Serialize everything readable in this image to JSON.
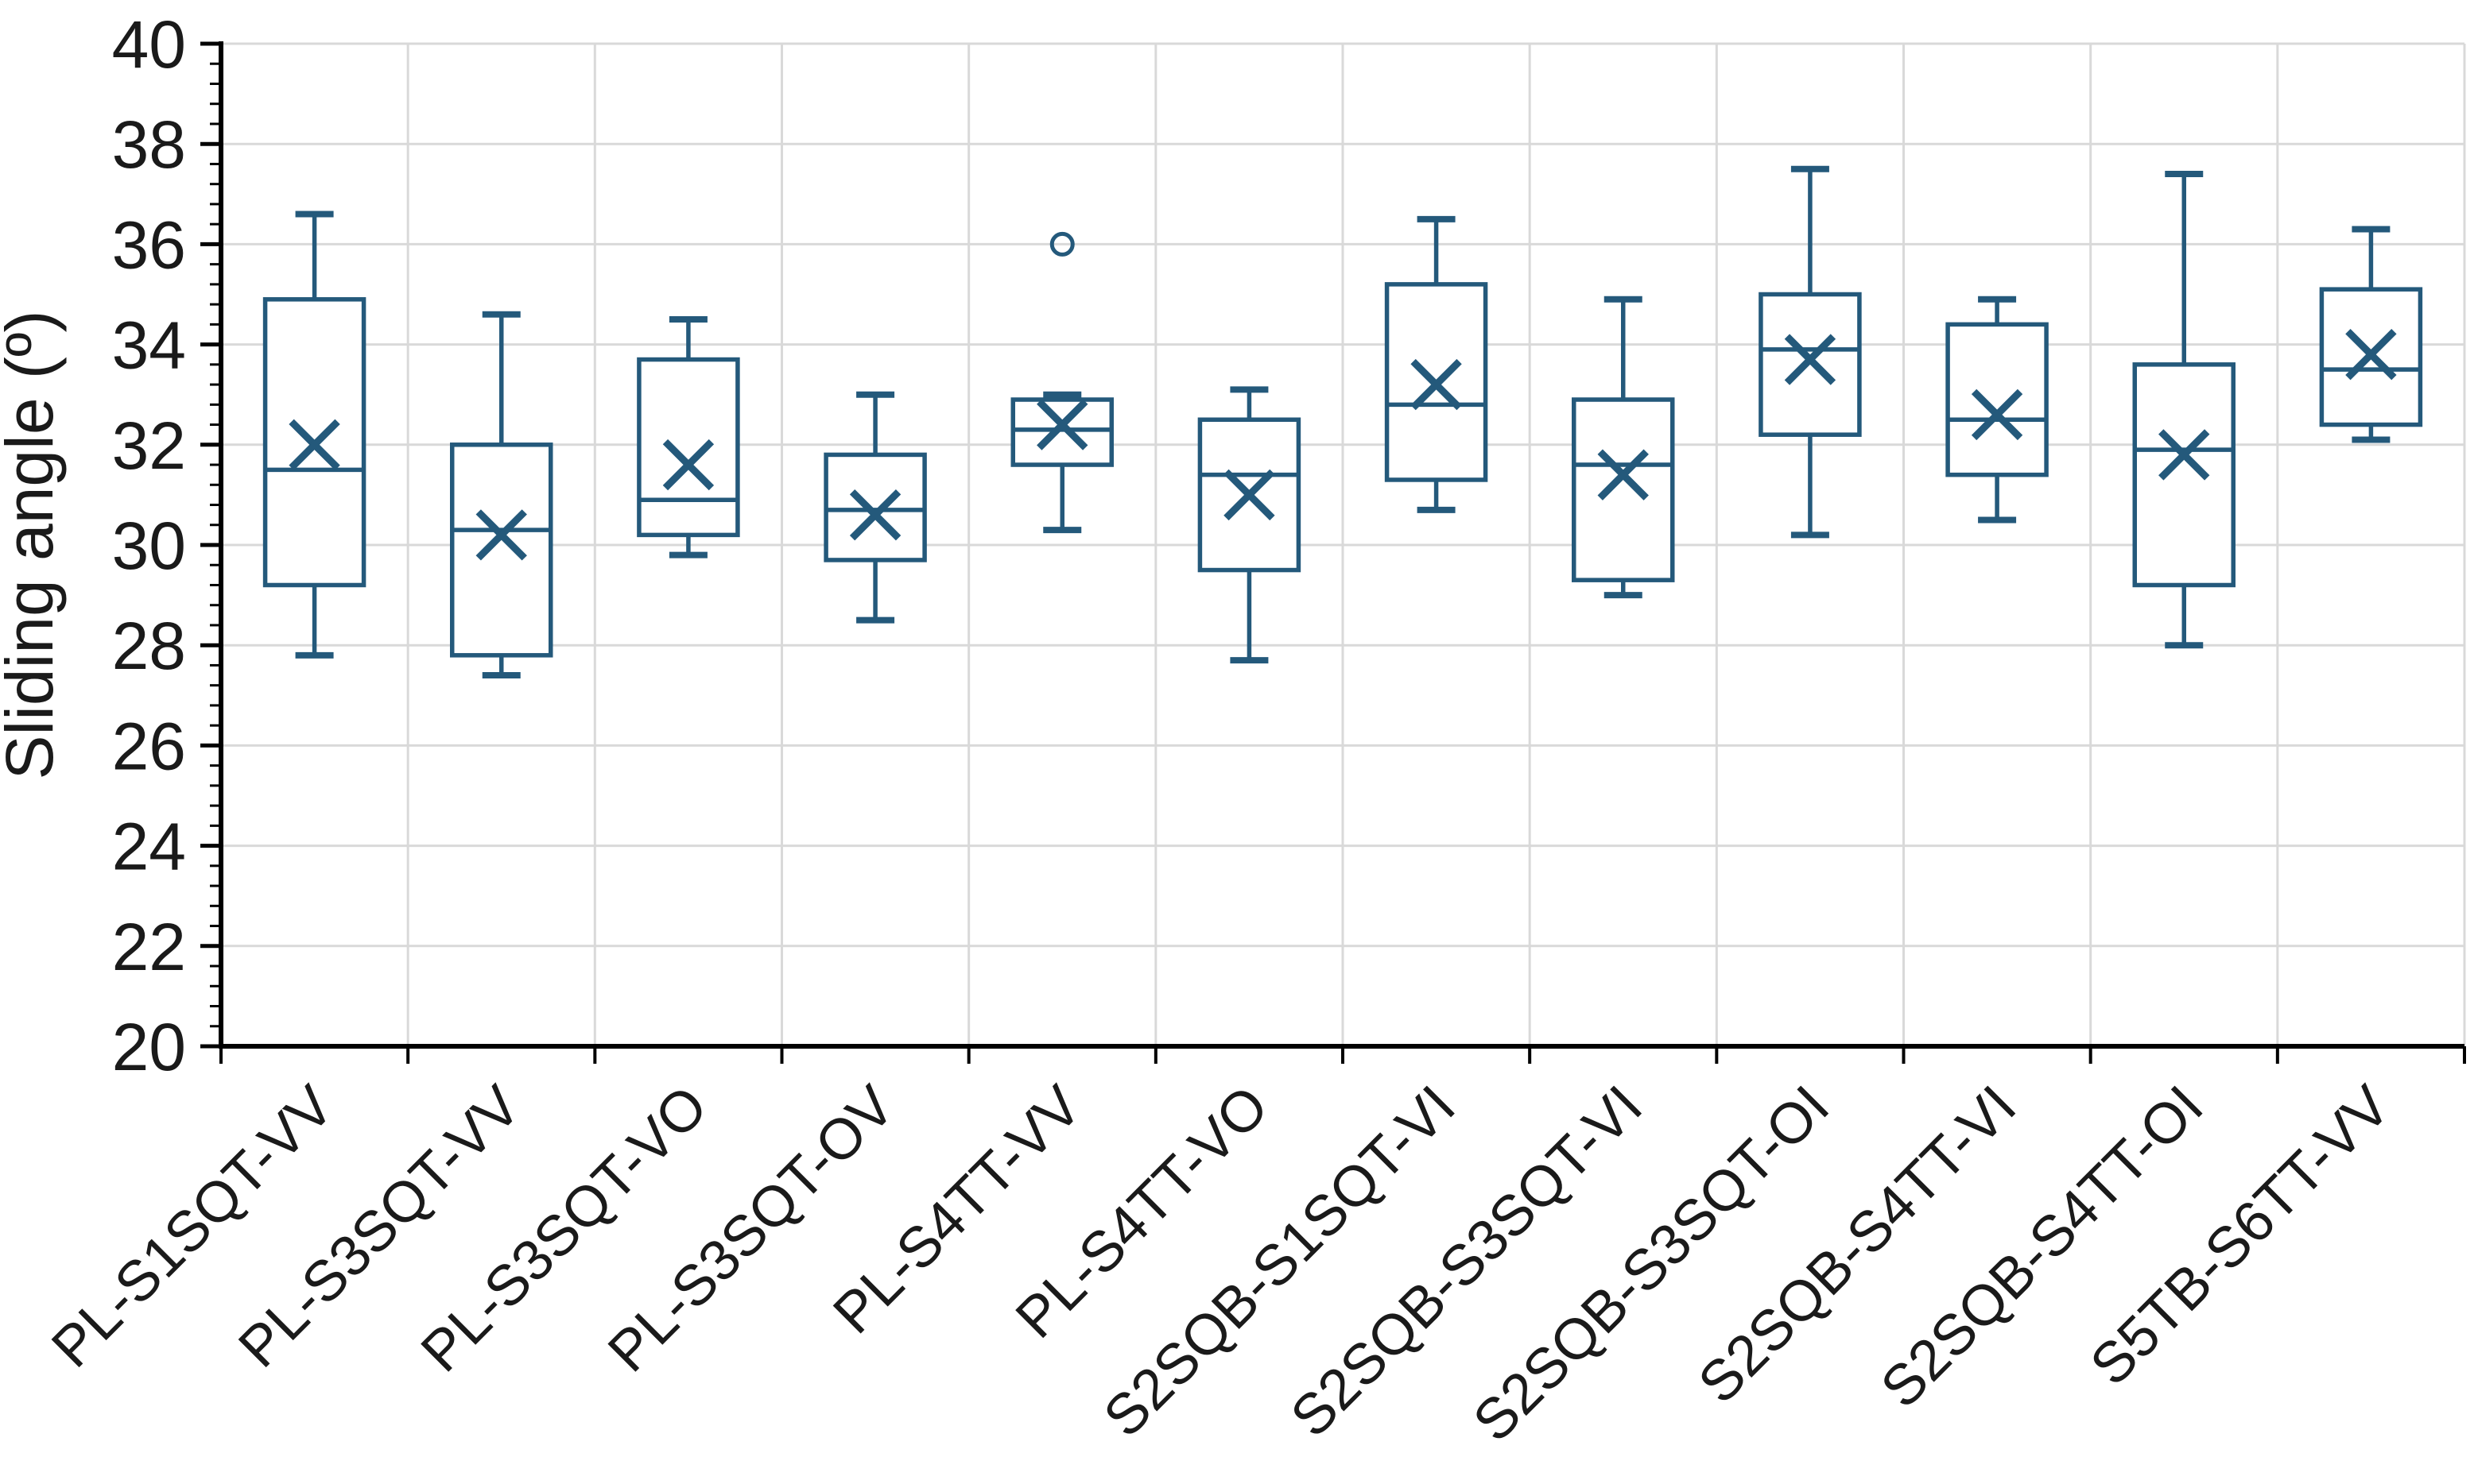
{
  "chart_data": {
    "type": "boxplot",
    "title": "",
    "xlabel": "",
    "ylabel": "Sliding angle (º)",
    "ylim": [
      20,
      40
    ],
    "yticks": [
      20,
      22,
      24,
      26,
      28,
      30,
      32,
      34,
      36,
      38,
      40
    ],
    "y_minor_tick_step": 0.4,
    "grid": true,
    "legend": "none",
    "x_label_rotation_deg": 45,
    "categories": [
      "PL-S1SQT-VV",
      "PL-S3SQT-VV",
      "PL-S3SQT-VO",
      "PL-S3SQT-OV",
      "PL-S4TT-VV",
      "PL-S4TT-VO",
      "S2SQB-S1SQT-VI",
      "S2SQB-S3SQT-VI",
      "S2SQB-S3SQT-OI",
      "S2SQB-S4TT-VI",
      "S2SQB-S4TT-OI",
      "S5TB-S6TT-VV"
    ],
    "series": [
      {
        "name": "PL-S1SQT-VV",
        "whisker_low": 27.8,
        "q1": 29.2,
        "median": 31.5,
        "q3": 34.9,
        "whisker_high": 36.6,
        "mean": 32.0,
        "outliers": []
      },
      {
        "name": "PL-S3SQT-VV",
        "whisker_low": 27.4,
        "q1": 27.8,
        "median": 30.3,
        "q3": 32.0,
        "whisker_high": 34.6,
        "mean": 30.2,
        "outliers": []
      },
      {
        "name": "PL-S3SQT-VO",
        "whisker_low": 29.8,
        "q1": 30.2,
        "median": 30.9,
        "q3": 33.7,
        "whisker_high": 34.5,
        "mean": 31.6,
        "outliers": []
      },
      {
        "name": "PL-S3SQT-OV",
        "whisker_low": 28.5,
        "q1": 29.7,
        "median": 30.7,
        "q3": 31.8,
        "whisker_high": 33.0,
        "mean": 30.6,
        "outliers": []
      },
      {
        "name": "PL-S4TT-VV",
        "whisker_low": 30.3,
        "q1": 31.6,
        "median": 32.3,
        "q3": 32.9,
        "whisker_high": 33.0,
        "mean": 32.4,
        "outliers": [
          36.0
        ]
      },
      {
        "name": "PL-S4TT-VO",
        "whisker_low": 27.7,
        "q1": 29.5,
        "median": 31.4,
        "q3": 32.5,
        "whisker_high": 33.1,
        "mean": 31.0,
        "outliers": []
      },
      {
        "name": "S2SQB-S1SQT-VI",
        "whisker_low": 30.7,
        "q1": 31.3,
        "median": 32.8,
        "q3": 35.2,
        "whisker_high": 36.5,
        "mean": 33.2,
        "outliers": []
      },
      {
        "name": "S2SQB-S3SQT-VI",
        "whisker_low": 29.0,
        "q1": 29.3,
        "median": 31.6,
        "q3": 32.9,
        "whisker_high": 34.9,
        "mean": 31.4,
        "outliers": []
      },
      {
        "name": "S2SQB-S3SQT-OI",
        "whisker_low": 30.2,
        "q1": 32.2,
        "median": 33.9,
        "q3": 35.0,
        "whisker_high": 37.5,
        "mean": 33.7,
        "outliers": []
      },
      {
        "name": "S2SQB-S4TT-VI",
        "whisker_low": 30.5,
        "q1": 31.4,
        "median": 32.5,
        "q3": 34.4,
        "whisker_high": 34.9,
        "mean": 32.6,
        "outliers": []
      },
      {
        "name": "S2SQB-S4TT-OI",
        "whisker_low": 28.0,
        "q1": 29.2,
        "median": 31.9,
        "q3": 33.6,
        "whisker_high": 37.4,
        "mean": 31.8,
        "outliers": []
      },
      {
        "name": "S5TB-S6TT-VV",
        "whisker_low": 32.1,
        "q1": 32.4,
        "median": 33.5,
        "q3": 35.1,
        "whisker_high": 36.3,
        "mean": 33.8,
        "outliers": []
      }
    ]
  },
  "colors": {
    "box": "#24597B",
    "grid": "#D9D9D9",
    "axis": "#000000",
    "text": "#1A1A1A",
    "background": "#FFFFFF"
  }
}
